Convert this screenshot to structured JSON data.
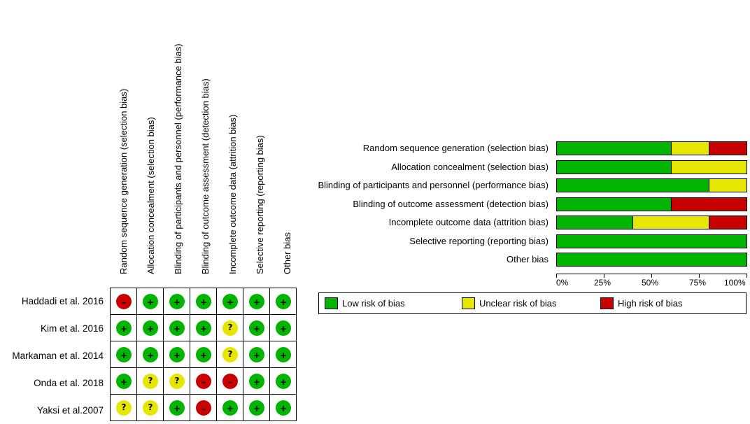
{
  "colors": {
    "low": "#00b400",
    "unclear": "#e6e600",
    "high": "#c80000"
  },
  "symbols": {
    "low": "+",
    "unclear": "?",
    "high": "–"
  },
  "chart_data": [
    {
      "type": "table",
      "columns": [
        "Random sequence generation (selection bias)",
        "Allocation concealment (selection bias)",
        "Blinding of participants and personnel (performance bias)",
        "Blinding of outcome assessment (detection bias)",
        "Incomplete outcome data (attrition bias)",
        "Selective reporting (reporting bias)",
        "Other bias"
      ],
      "rows": [
        {
          "study": "Haddadi et al. 2016",
          "judgements": [
            "high",
            "low",
            "low",
            "low",
            "low",
            "low",
            "low"
          ]
        },
        {
          "study": "Kim et al. 2016",
          "judgements": [
            "low",
            "low",
            "low",
            "low",
            "unclear",
            "low",
            "low"
          ]
        },
        {
          "study": "Markaman et al. 2014",
          "judgements": [
            "low",
            "low",
            "low",
            "low",
            "unclear",
            "low",
            "low"
          ]
        },
        {
          "study": "Onda et al. 2018",
          "judgements": [
            "low",
            "unclear",
            "unclear",
            "high",
            "high",
            "low",
            "low"
          ]
        },
        {
          "study": "Yaksi et al.2007",
          "judgements": [
            "unclear",
            "unclear",
            "low",
            "high",
            "low",
            "low",
            "low"
          ]
        }
      ]
    },
    {
      "type": "bar",
      "stacked": true,
      "orientation": "horizontal",
      "categories": [
        "Random sequence generation (selection bias)",
        "Allocation concealment (selection bias)",
        "Blinding of participants and personnel (performance bias)",
        "Blinding of outcome assessment (detection bias)",
        "Incomplete outcome data (attrition bias)",
        "Selective reporting (reporting bias)",
        "Other bias"
      ],
      "series": [
        {
          "name": "Low risk of bias",
          "key": "low",
          "values": [
            60,
            60,
            80,
            60,
            40,
            100,
            100
          ]
        },
        {
          "name": "Unclear risk of bias",
          "key": "unclear",
          "values": [
            20,
            40,
            20,
            0,
            40,
            0,
            0
          ]
        },
        {
          "name": "High risk of bias",
          "key": "high",
          "values": [
            20,
            0,
            0,
            40,
            20,
            0,
            0
          ]
        }
      ],
      "xlim": [
        0,
        100
      ],
      "xticks": [
        "0%",
        "25%",
        "50%",
        "75%",
        "100%"
      ],
      "legend_position": "bottom"
    }
  ]
}
